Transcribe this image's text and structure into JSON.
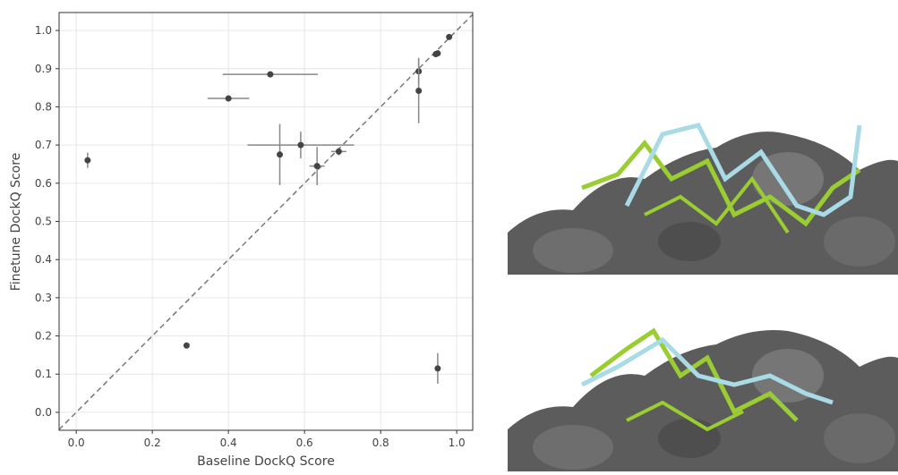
{
  "chart_data": {
    "type": "scatter",
    "xlabel": "Baseline DockQ Score",
    "ylabel": "Finetune DockQ Score",
    "x": [
      0.03,
      0.29,
      0.4,
      0.51,
      0.535,
      0.59,
      0.633,
      0.69,
      0.9,
      0.9,
      0.945,
      0.95,
      0.98,
      0.95
    ],
    "y": [
      0.66,
      0.175,
      0.822,
      0.885,
      0.675,
      0.7,
      0.645,
      0.683,
      0.893,
      0.842,
      0.938,
      0.94,
      0.983,
      0.115
    ],
    "xerr": [
      0,
      0,
      0.055,
      0.125,
      0,
      0.14,
      0.02,
      0.02,
      0,
      0,
      0,
      0,
      0,
      0
    ],
    "yerr": [
      0.02,
      0,
      0,
      0,
      0.08,
      0.035,
      0.05,
      0.01,
      0.035,
      0.085,
      0,
      0,
      0,
      0.04
    ],
    "color": "#444444",
    "xlim": [
      -0.045,
      1.042
    ],
    "ylim": [
      -0.047,
      1.047
    ],
    "xticks": [
      {
        "value": 0,
        "label": "0.0"
      },
      {
        "value": 0.2,
        "label": "0.2"
      },
      {
        "value": 0.4,
        "label": "0.4"
      },
      {
        "value": 0.6,
        "label": "0.6"
      },
      {
        "value": 0.8,
        "label": "0.8"
      },
      {
        "value": 1,
        "label": "1.0"
      }
    ],
    "yticks": [
      {
        "value": 0,
        "label": "0.0"
      },
      {
        "value": 0.1,
        "label": "0.1"
      },
      {
        "value": 0.2,
        "label": "0.2"
      },
      {
        "value": 0.3,
        "label": "0.3"
      },
      {
        "value": 0.4,
        "label": "0.4"
      },
      {
        "value": 0.5,
        "label": "0.5"
      },
      {
        "value": 0.6,
        "label": "0.6"
      },
      {
        "value": 0.7,
        "label": "0.7"
      },
      {
        "value": 0.8,
        "label": "0.8"
      },
      {
        "value": 0.9,
        "label": "0.9"
      },
      {
        "value": 1,
        "label": "1.0"
      }
    ],
    "grid": true
  }
}
